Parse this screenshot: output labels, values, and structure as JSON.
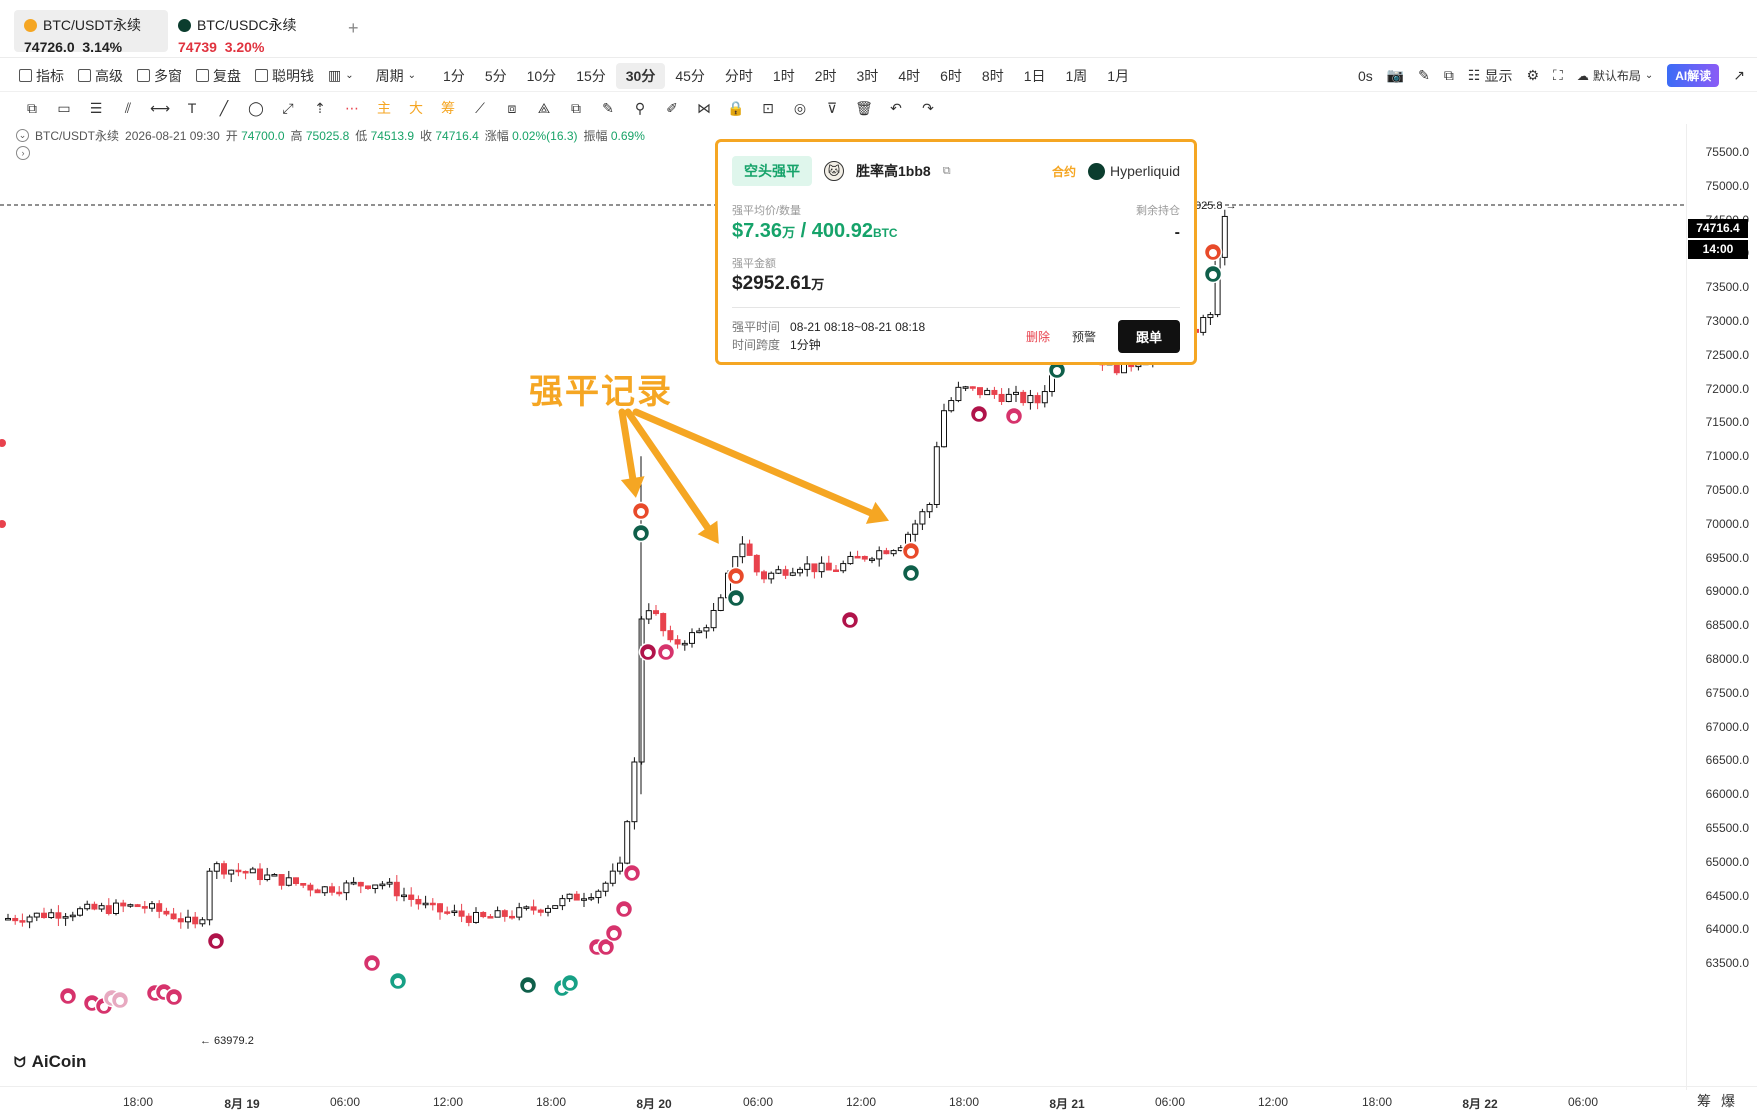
{
  "tabs": [
    {
      "name": "BTC/USDT永续",
      "price": "74726.0",
      "change": "3.14%",
      "active": true,
      "color": "#222222"
    },
    {
      "name": "BTC/USDC永续",
      "price": "74739",
      "change": "3.20%",
      "active": false,
      "color": "#e0333f"
    }
  ],
  "toolbar": {
    "left": [
      "指标",
      "高级",
      "多窗",
      "复盘",
      "聪明钱"
    ],
    "period_label": "周期",
    "periods": [
      "1分",
      "5分",
      "10分",
      "15分",
      "30分",
      "45分",
      "分时",
      "1时",
      "2时",
      "3时",
      "4时",
      "6时",
      "8时",
      "1日",
      "1周",
      "1月"
    ],
    "selected_period": "30分",
    "countdown": "0s",
    "display_label": "显示",
    "layout_label": "默认布局",
    "ai_label": "AI解读"
  },
  "drawtools": [
    "⧉",
    "▭",
    "☰",
    "⫽",
    "⟷",
    "T",
    "╱",
    "◯",
    "⤢",
    "⇡",
    "⋯",
    "主",
    "大",
    "筹",
    "⟋",
    "⧈",
    "⟁",
    "⧉",
    "✎",
    "⚲",
    "✐",
    "⋈",
    "🔒",
    "⊡",
    "◎",
    "⊽",
    "🗑",
    "↶",
    "↷"
  ],
  "info": {
    "symbol": "BTC/USDT永续",
    "datetime": "2026-08-21 09:30",
    "open_label": "开",
    "open": "74700.0",
    "high_label": "高",
    "high": "75025.8",
    "low_label": "低",
    "low": "74513.9",
    "close_label": "收",
    "close": "74716.4",
    "change_label": "涨幅",
    "change": "0.02%(16.3)",
    "amp_label": "振幅",
    "amp": "0.69%"
  },
  "yaxis": {
    "ticks": [
      "75500.0",
      "75000.0",
      "74500.0",
      "74000.0",
      "73500.0",
      "73000.0",
      "72500.0",
      "72000.0",
      "71500.0",
      "71000.0",
      "70500.0",
      "70000.0",
      "69500.0",
      "69000.0",
      "68500.0",
      "68000.0",
      "67500.0",
      "67000.0",
      "66500.0",
      "66000.0",
      "65500.0",
      "65000.0",
      "64500.0",
      "64000.0",
      "63500.0"
    ],
    "current_price": "74716.4",
    "countdown": "14:00"
  },
  "xaxis": {
    "ticks": [
      {
        "label": "18:00",
        "bold": false
      },
      {
        "label": "8月 19",
        "bold": true
      },
      {
        "label": "06:00",
        "bold": false
      },
      {
        "label": "12:00",
        "bold": false
      },
      {
        "label": "18:00",
        "bold": false
      },
      {
        "label": "8月 20",
        "bold": true
      },
      {
        "label": "06:00",
        "bold": false
      },
      {
        "label": "12:00",
        "bold": false
      },
      {
        "label": "18:00",
        "bold": false
      },
      {
        "label": "8月 21",
        "bold": true
      },
      {
        "label": "06:00",
        "bold": false
      },
      {
        "label": "12:00",
        "bold": false
      },
      {
        "label": "18:00",
        "bold": false
      },
      {
        "label": "8月 22",
        "bold": true
      },
      {
        "label": "06:00",
        "bold": false
      }
    ],
    "right_labels": [
      "筹",
      "爆"
    ]
  },
  "chart_labels": {
    "low_marker": "← 63979.2",
    "high_marker": "025.8 →"
  },
  "annotation": "强平记录",
  "popup": {
    "badge": "空头强平",
    "trader": "胜率高1bb8",
    "contract_tag": "合约",
    "exchange": "Hyperliquid",
    "avg_label": "强平均价/数量",
    "avg_price": "$7.36",
    "avg_unit": "万",
    "sep": "/",
    "qty": "400.92",
    "qty_unit": "BTC",
    "remaining_label": "剩余持仓",
    "remaining_value": "-",
    "amount_label": "强平金额",
    "amount": "$2952.61",
    "amount_unit": "万",
    "time_label": "强平时间",
    "time_value": "08-21 08:18~08-21 08:18",
    "span_label": "时间跨度",
    "span_value": "1分钟",
    "delete_label": "删除",
    "alert_label": "预警",
    "follow_label": "跟单"
  },
  "logo": "AiCoin",
  "colors": {
    "up": "#111111",
    "down": "#e8424d",
    "accent": "#f5a623",
    "green": "#16a36a"
  }
}
